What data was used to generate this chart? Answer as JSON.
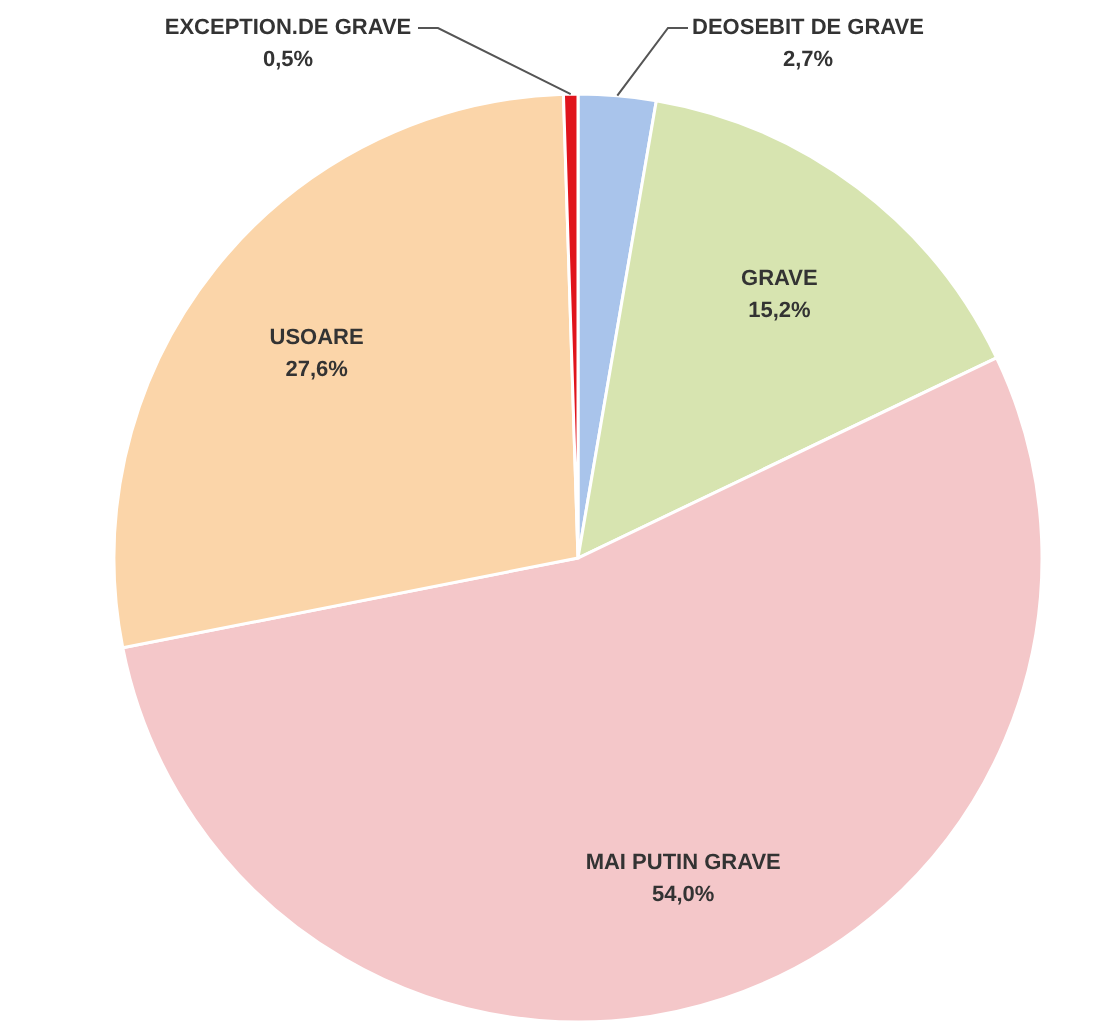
{
  "chart_data": {
    "type": "pie",
    "categories": [
      "DEOSEBIT DE GRAVE",
      "GRAVE",
      "MAI PUTIN GRAVE",
      "USOARE",
      "EXCEPTION.DE GRAVE"
    ],
    "values": [
      2.7,
      15.2,
      54.0,
      27.6,
      0.5
    ],
    "value_labels": [
      "2,7%",
      "15,2%",
      "54,0%",
      "27,6%",
      "0,5%"
    ],
    "colors": [
      "#a9c4eb",
      "#d7e4b0",
      "#f4c7c9",
      "#fbd5a9",
      "#e0141c"
    ]
  }
}
